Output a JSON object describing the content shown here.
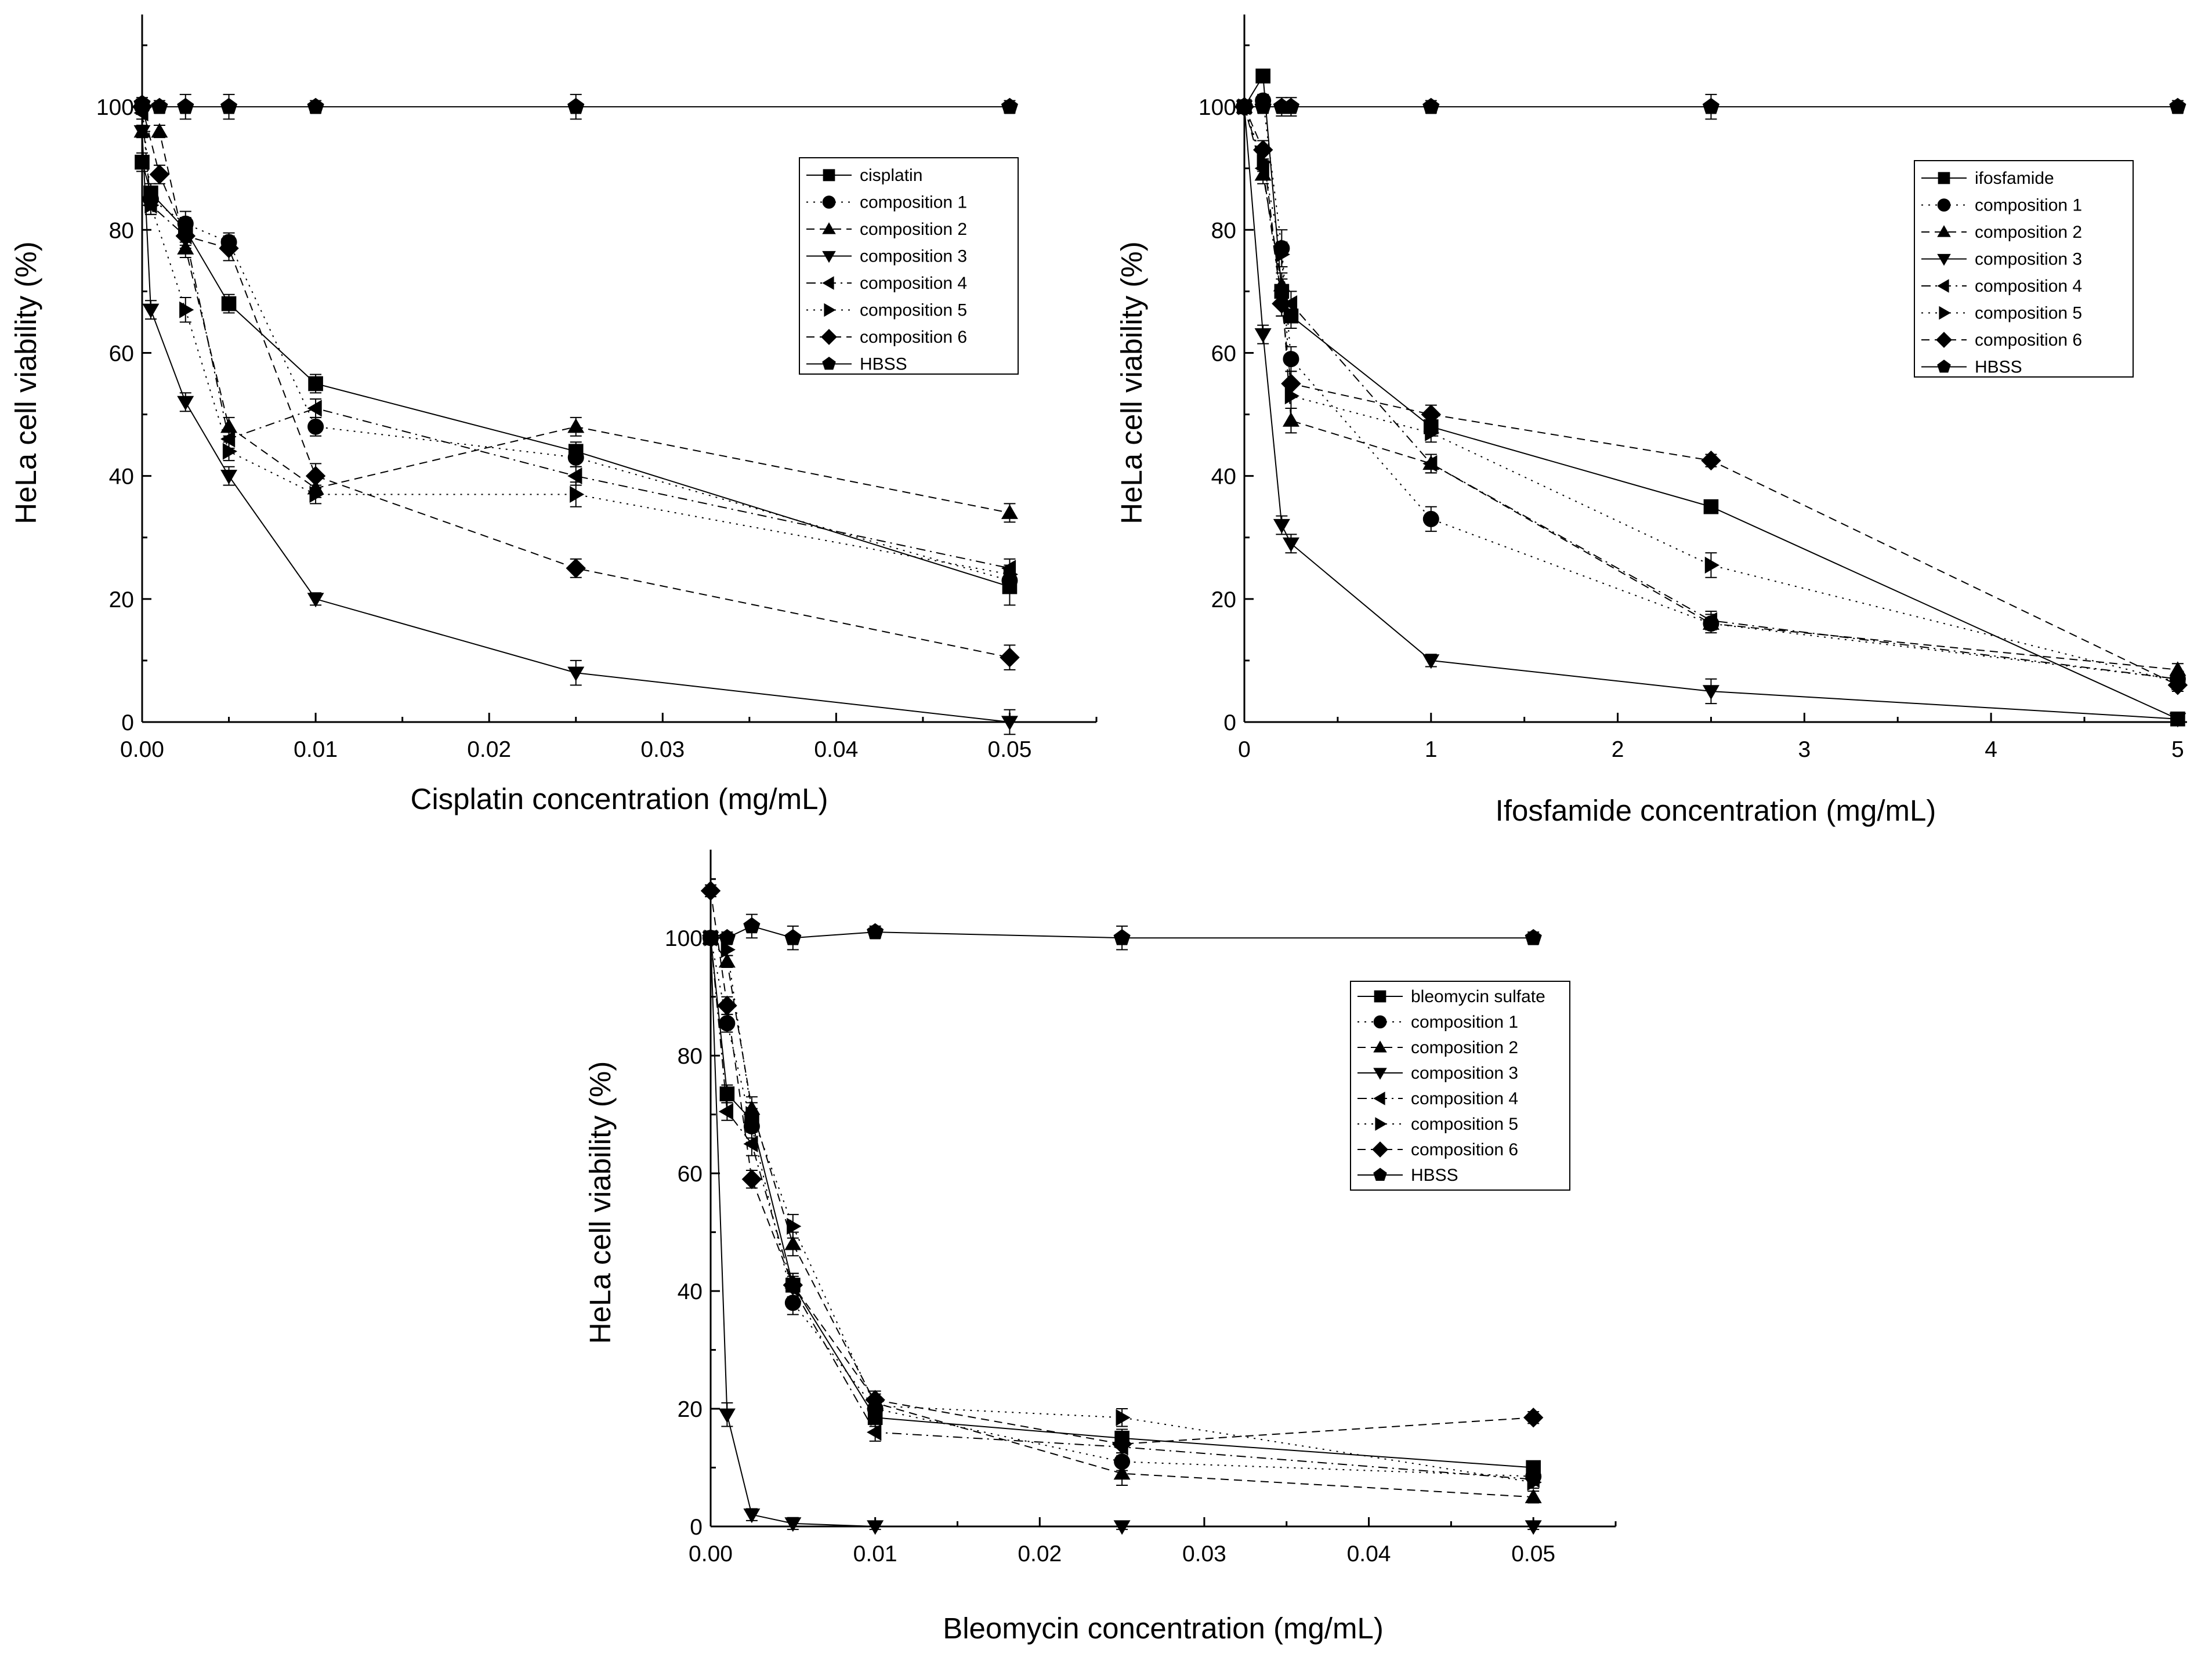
{
  "colors": {
    "ink": "#000000",
    "background": "#ffffff"
  },
  "chart_data": [
    {
      "type": "line",
      "xlabel": "Cisplatin concentration (mg/mL)",
      "ylabel": "HeLa cell viability (%)",
      "xlim": [
        0,
        0.055
      ],
      "ylim": [
        0,
        115
      ],
      "xticks": [
        0,
        0.01,
        0.02,
        0.03,
        0.04,
        0.05
      ],
      "xtick_labels": [
        "0.00",
        "0.01",
        "0.02",
        "0.03",
        "0.04",
        "0.05"
      ],
      "yticks": [
        0,
        20,
        40,
        60,
        80,
        100
      ],
      "ytick_labels": [
        "0",
        "20",
        "40",
        "60",
        "80",
        "100"
      ],
      "legend_position": "upper-right",
      "series": [
        {
          "name": "cisplatin",
          "marker": "square",
          "dash": "solid",
          "x": [
            0,
            0.0005,
            0.0025,
            0.005,
            0.01,
            0.025,
            0.05
          ],
          "y": [
            91,
            86,
            80,
            68,
            55,
            44,
            22
          ],
          "err": [
            1.5,
            1.5,
            2,
            1.5,
            1.5,
            1.5,
            3
          ]
        },
        {
          "name": "composition 1",
          "marker": "circle",
          "dash": "dotted",
          "x": [
            0,
            0.0005,
            0.0025,
            0.005,
            0.01,
            0.025,
            0.05
          ],
          "y": [
            100,
            85,
            81,
            78,
            48,
            43,
            23
          ],
          "err": [
            1,
            1.5,
            2,
            1.5,
            1.5,
            1.5,
            2
          ]
        },
        {
          "name": "composition 2",
          "marker": "triangle-up",
          "dash": "dashed",
          "x": [
            0,
            0.001,
            0.0025,
            0.005,
            0.01,
            0.025,
            0.05
          ],
          "y": [
            96,
            96,
            77,
            48,
            38,
            48,
            34
          ],
          "err": [
            1,
            1,
            1.5,
            1.5,
            1.5,
            1.5,
            1.5
          ]
        },
        {
          "name": "composition 3",
          "marker": "triangle-down",
          "dash": "solid",
          "x": [
            0,
            0.0005,
            0.0025,
            0.005,
            0.01,
            0.025,
            0.05
          ],
          "y": [
            96,
            67,
            52,
            40,
            20,
            8,
            0
          ],
          "err": [
            1,
            1.5,
            1.5,
            1.5,
            1,
            2,
            2
          ]
        },
        {
          "name": "composition 4",
          "marker": "triangle-left",
          "dash": "dash-dot",
          "x": [
            0,
            0.0005,
            0.0025,
            0.005,
            0.01,
            0.025,
            0.05
          ],
          "y": [
            99,
            84,
            79,
            46,
            51,
            40,
            25
          ],
          "err": [
            1,
            1.5,
            1.5,
            1.5,
            1.5,
            1.5,
            1.5
          ]
        },
        {
          "name": "composition 5",
          "marker": "triangle-right",
          "dash": "dotted",
          "x": [
            0,
            0.0005,
            0.0025,
            0.005,
            0.01,
            0.025,
            0.05
          ],
          "y": [
            100,
            84,
            67,
            44,
            37,
            37,
            24
          ],
          "err": [
            1,
            1.5,
            2,
            1.5,
            1.5,
            2,
            1.5
          ]
        },
        {
          "name": "composition 6",
          "marker": "diamond",
          "dash": "dashed",
          "x": [
            0,
            0.001,
            0.0025,
            0.005,
            0.01,
            0.025,
            0.05
          ],
          "y": [
            100,
            89,
            79,
            77,
            40,
            25,
            10.5
          ],
          "err": [
            1,
            1.5,
            2,
            2,
            2,
            1.5,
            2
          ]
        },
        {
          "name": "HBSS",
          "marker": "pentagon",
          "dash": "solid",
          "x": [
            0,
            0.001,
            0.0025,
            0.005,
            0.01,
            0.025,
            0.05
          ],
          "y": [
            100.5,
            100,
            100,
            100,
            100,
            100,
            100
          ],
          "err": [
            1,
            1,
            2,
            2,
            1,
            2,
            1
          ]
        }
      ]
    },
    {
      "type": "line",
      "xlabel": "Ifosfamide concentration (mg/mL)",
      "ylabel": "HeLa cell viability (%)",
      "xlim": [
        0,
        5.05
      ],
      "ylim": [
        0,
        115
      ],
      "xticks": [
        0,
        1,
        2,
        3,
        4,
        5
      ],
      "xtick_labels": [
        "0",
        "1",
        "2",
        "3",
        "4",
        "5"
      ],
      "yticks": [
        0,
        20,
        40,
        60,
        80,
        100
      ],
      "ytick_labels": [
        "0",
        "20",
        "40",
        "60",
        "80",
        "100"
      ],
      "legend_position": "upper-right",
      "series": [
        {
          "name": "ifosfamide",
          "marker": "square",
          "dash": "solid",
          "x": [
            0,
            0.1,
            0.2,
            0.25,
            1,
            2.5,
            5
          ],
          "y": [
            100,
            105,
            70,
            66,
            48,
            35,
            0.5
          ],
          "err": [
            1,
            1,
            2,
            2,
            1.5,
            1,
            1
          ]
        },
        {
          "name": "composition 1",
          "marker": "circle",
          "dash": "dotted",
          "x": [
            0,
            0.1,
            0.2,
            0.25,
            1,
            2.5,
            5
          ],
          "y": [
            100,
            101,
            77,
            59,
            33,
            16,
            7
          ],
          "err": [
            1,
            1,
            3,
            2,
            2,
            1.5,
            1
          ]
        },
        {
          "name": "composition 2",
          "marker": "triangle-up",
          "dash": "dashed",
          "x": [
            0,
            0.1,
            0.2,
            0.25,
            1,
            2.5,
            5
          ],
          "y": [
            100,
            89,
            71,
            49,
            42,
            16,
            8.5
          ],
          "err": [
            1,
            1.5,
            2,
            2,
            1.5,
            1,
            1
          ]
        },
        {
          "name": "composition 3",
          "marker": "triangle-down",
          "dash": "solid",
          "x": [
            0,
            0.1,
            0.2,
            0.25,
            1,
            2.5,
            5
          ],
          "y": [
            100,
            63,
            32,
            29,
            10,
            5,
            0.5
          ],
          "err": [
            1,
            1.5,
            1.5,
            1.5,
            1,
            2,
            1
          ]
        },
        {
          "name": "composition 4",
          "marker": "triangle-left",
          "dash": "dash-dot",
          "x": [
            0,
            0.1,
            0.2,
            0.25,
            1,
            2.5,
            5
          ],
          "y": [
            100,
            90,
            68,
            68,
            42,
            16.5,
            7
          ],
          "err": [
            1,
            1.5,
            2,
            2,
            1.5,
            1.5,
            1
          ]
        },
        {
          "name": "composition 5",
          "marker": "triangle-right",
          "dash": "dotted",
          "x": [
            0,
            0.1,
            0.2,
            0.25,
            1,
            2.5,
            5
          ],
          "y": [
            100,
            91,
            76,
            53,
            47,
            25.5,
            6.5
          ],
          "err": [
            1,
            1.5,
            2,
            2,
            1.5,
            2,
            1
          ]
        },
        {
          "name": "composition 6",
          "marker": "diamond",
          "dash": "dashed",
          "x": [
            0,
            0.1,
            0.2,
            0.25,
            1,
            2.5,
            5
          ],
          "y": [
            100,
            93,
            68,
            55,
            50,
            42.5,
            6
          ],
          "err": [
            1,
            1.5,
            2,
            2,
            1.5,
            1,
            1
          ]
        },
        {
          "name": "HBSS",
          "marker": "pentagon",
          "dash": "solid",
          "x": [
            0,
            0.1,
            0.2,
            0.25,
            1,
            2.5,
            5
          ],
          "y": [
            100,
            100,
            100,
            100,
            100,
            100,
            100
          ],
          "err": [
            1,
            1,
            1.5,
            1.5,
            1,
            2,
            1
          ]
        }
      ]
    },
    {
      "type": "line",
      "xlabel": "Bleomycin concentration (mg/mL)",
      "ylabel": "HeLa cell viability (%)",
      "xlim": [
        0,
        0.055
      ],
      "ylim": [
        0,
        115
      ],
      "xticks": [
        0,
        0.01,
        0.02,
        0.03,
        0.04,
        0.05
      ],
      "xtick_labels": [
        "0.00",
        "0.01",
        "0.02",
        "0.03",
        "0.04",
        "0.05"
      ],
      "yticks": [
        0,
        20,
        40,
        60,
        80,
        100
      ],
      "ytick_labels": [
        "0",
        "20",
        "40",
        "60",
        "80",
        "100"
      ],
      "legend_position": "right",
      "series": [
        {
          "name": "bleomycin sulfate",
          "marker": "square",
          "dash": "solid",
          "x": [
            0,
            0.001,
            0.0025,
            0.005,
            0.01,
            0.025,
            0.05
          ],
          "y": [
            100,
            73.5,
            69,
            41,
            18.5,
            15,
            10
          ],
          "err": [
            1,
            1.5,
            2,
            2,
            1.5,
            1.5,
            1
          ]
        },
        {
          "name": "composition 1",
          "marker": "circle",
          "dash": "dotted",
          "x": [
            0,
            0.001,
            0.0025,
            0.005,
            0.01,
            0.025,
            0.05
          ],
          "y": [
            100,
            85.5,
            68,
            38,
            20,
            11,
            8.5
          ],
          "err": [
            1,
            1.5,
            2,
            2,
            1.5,
            1.5,
            1
          ]
        },
        {
          "name": "composition 2",
          "marker": "triangle-up",
          "dash": "dashed",
          "x": [
            0,
            0.001,
            0.0025,
            0.005,
            0.01,
            0.025,
            0.05
          ],
          "y": [
            100,
            96,
            71,
            48,
            21,
            9,
            5
          ],
          "err": [
            1,
            1,
            2,
            2,
            1.5,
            2,
            1
          ]
        },
        {
          "name": "composition 3",
          "marker": "triangle-down",
          "dash": "solid",
          "x": [
            0,
            0.001,
            0.0025,
            0.005,
            0.01,
            0.025,
            0.05
          ],
          "y": [
            100,
            19,
            2,
            0.5,
            0,
            0,
            0
          ],
          "err": [
            1,
            2,
            1,
            1,
            0.5,
            0.5,
            0.5
          ]
        },
        {
          "name": "composition 4",
          "marker": "triangle-left",
          "dash": "dash-dot",
          "x": [
            0,
            0.001,
            0.0025,
            0.005,
            0.01,
            0.025,
            0.05
          ],
          "y": [
            100,
            70.5,
            65,
            40.5,
            16,
            13.5,
            8
          ],
          "err": [
            1,
            1.5,
            2,
            2,
            1.5,
            1.5,
            1
          ]
        },
        {
          "name": "composition 5",
          "marker": "triangle-right",
          "dash": "dotted",
          "x": [
            0,
            0.001,
            0.0025,
            0.005,
            0.01,
            0.025,
            0.05
          ],
          "y": [
            100,
            98,
            70,
            51,
            20.5,
            18.5,
            7.5
          ],
          "err": [
            1,
            1,
            2,
            2,
            1.5,
            1.5,
            1
          ]
        },
        {
          "name": "composition 6",
          "marker": "diamond",
          "dash": "dashed",
          "x": [
            0,
            0.001,
            0.0025,
            0.005,
            0.01,
            0.025,
            0.05
          ],
          "y": [
            108,
            88.5,
            59,
            41,
            21.5,
            14,
            18.5
          ],
          "err": [
            1,
            1.5,
            1.5,
            2,
            1.5,
            1.5,
            1
          ]
        },
        {
          "name": "HBSS",
          "marker": "pentagon",
          "dash": "solid",
          "x": [
            0,
            0.001,
            0.0025,
            0.005,
            0.01,
            0.025,
            0.05
          ],
          "y": [
            100,
            100,
            102,
            100,
            101,
            100,
            100
          ],
          "err": [
            1,
            1,
            2,
            2,
            1,
            2,
            1
          ]
        }
      ]
    }
  ]
}
